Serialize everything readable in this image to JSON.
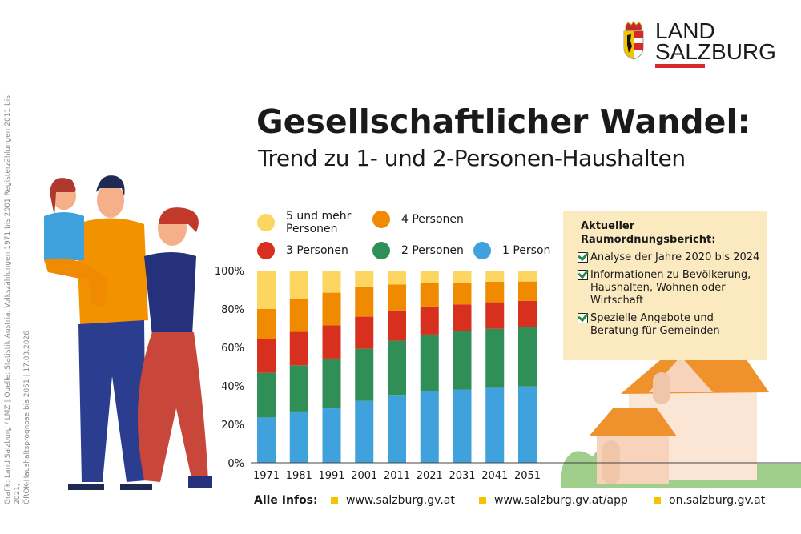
{
  "logo": {
    "line1": "LAND",
    "line2": "SALZBURG"
  },
  "title": "Gesellschaftlicher Wandel:",
  "subtitle": "Trend zu 1- und 2-Personen-Haushalten",
  "source_line1": "Grafik: Land Salzburg / LMZ  |  Quelle: Statistik Austria, Volkszählungen 1971 bis 2001 Registerzählungen 2011 bis 2021,",
  "source_line2": "ÖROK-Haushaltsprognose bis 2051  |  17.03.2026",
  "infobox": {
    "heading": "Aktueller Raumordnungsbericht:",
    "items": [
      "Analyse der Jahre 2020 bis 2024",
      "Informationen zu Bevölkerung, Haushalten, Wohnen oder Wirtschaft",
      "Spezielle Angebote und Beratung für Gemeinden"
    ]
  },
  "footer": {
    "label": "Alle Infos:",
    "links": [
      "www.salzburg.gv.at",
      "www.salzburg.gv.at/app",
      "on.salzburg.gv.at"
    ]
  },
  "chart_data": {
    "type": "bar",
    "stacked": true,
    "categories": [
      "1971",
      "1981",
      "1991",
      "2001",
      "2011",
      "2021",
      "2031",
      "2041",
      "2051"
    ],
    "ylim": [
      0,
      100
    ],
    "yticks": [
      "0%",
      "20%",
      "40%",
      "60%",
      "80%",
      "100%"
    ],
    "legend": [
      "5 und mehr Personen",
      "4 Personen",
      "3 Personen",
      "2 Personen",
      "1 Person"
    ],
    "series": [
      {
        "name": "1 Person",
        "color": "#3fa2dc",
        "values": [
          23.6,
          26.7,
          28.3,
          32.2,
          34.9,
          37.1,
          38.1,
          39.0,
          39.7
        ]
      },
      {
        "name": "2 Personen",
        "color": "#2f8f57",
        "values": [
          23.2,
          24.0,
          25.9,
          27.1,
          28.6,
          29.6,
          30.5,
          30.7,
          31.0
        ]
      },
      {
        "name": "3 Personen",
        "color": "#d7301f",
        "values": [
          17.4,
          17.4,
          17.3,
          16.7,
          15.7,
          14.6,
          13.8,
          13.8,
          13.5
        ]
      },
      {
        "name": "4 Personen",
        "color": "#f08a00",
        "values": [
          15.9,
          16.9,
          17.0,
          15.4,
          13.6,
          12.2,
          11.4,
          10.7,
          10.1
        ]
      },
      {
        "name": "5 und mehr Personen",
        "color": "#fdd561",
        "values": [
          19.9,
          15.0,
          11.5,
          8.6,
          7.2,
          6.5,
          6.2,
          5.8,
          5.7
        ]
      }
    ]
  }
}
